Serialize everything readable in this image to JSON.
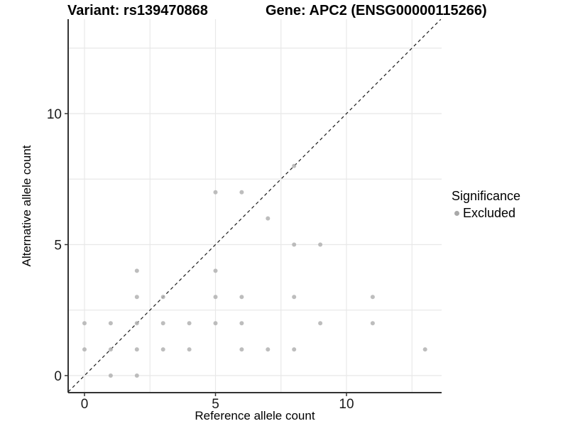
{
  "header": {
    "variant_title": "Variant: rs139470868",
    "gene_title": "Gene: APC2 (ENSG00000115266)"
  },
  "legend": {
    "title": "Significance",
    "items": [
      {
        "label": "Excluded",
        "color": "#a9a9a9"
      }
    ]
  },
  "colors": {
    "background": "#ffffff",
    "point": "#b2b2b2",
    "legend_point": "#a9a9a9",
    "grid": "#e8e8e8",
    "axis": "#333333",
    "tick_text": "#1a1a1a",
    "diagonal": "#1a1a1a"
  },
  "chart_data": {
    "type": "scatter",
    "title_left": "Variant: rs139470868",
    "title_right": "Gene: APC2 (ENSG00000115266)",
    "xlabel": "Reference allele count",
    "ylabel": "Alternative allele count",
    "x_ticks": [
      0,
      5,
      10
    ],
    "y_ticks": [
      0,
      5,
      10
    ],
    "x_gridlines": [
      0,
      2.5,
      5,
      7.5,
      10,
      12.5
    ],
    "y_gridlines": [
      0,
      2.5,
      5,
      7.5,
      10,
      12.5
    ],
    "xlim": [
      -0.65,
      13.65
    ],
    "ylim": [
      -0.65,
      13.6
    ],
    "grid": "on",
    "legend_position": "right",
    "series": [
      {
        "name": "Excluded",
        "points": [
          [
            0,
            1
          ],
          [
            0,
            2
          ],
          [
            1,
            0
          ],
          [
            1,
            1
          ],
          [
            1,
            2
          ],
          [
            2,
            0
          ],
          [
            2,
            1
          ],
          [
            2,
            2
          ],
          [
            2,
            3
          ],
          [
            2,
            4
          ],
          [
            3,
            1
          ],
          [
            3,
            2
          ],
          [
            3,
            3
          ],
          [
            4,
            1
          ],
          [
            4,
            2
          ],
          [
            5,
            2
          ],
          [
            5,
            3
          ],
          [
            5,
            4
          ],
          [
            5,
            7
          ],
          [
            6,
            1
          ],
          [
            6,
            2
          ],
          [
            6,
            3
          ],
          [
            6,
            7
          ],
          [
            7,
            1
          ],
          [
            7,
            6
          ],
          [
            8,
            1
          ],
          [
            8,
            3
          ],
          [
            8,
            5
          ],
          [
            8,
            8
          ],
          [
            9,
            2
          ],
          [
            9,
            5
          ],
          [
            11,
            2
          ],
          [
            11,
            3
          ],
          [
            13,
            1
          ]
        ]
      }
    ],
    "identity_line": {
      "equation": "y = x",
      "style": "dashed",
      "from": -0.62,
      "to": 13.6
    }
  }
}
